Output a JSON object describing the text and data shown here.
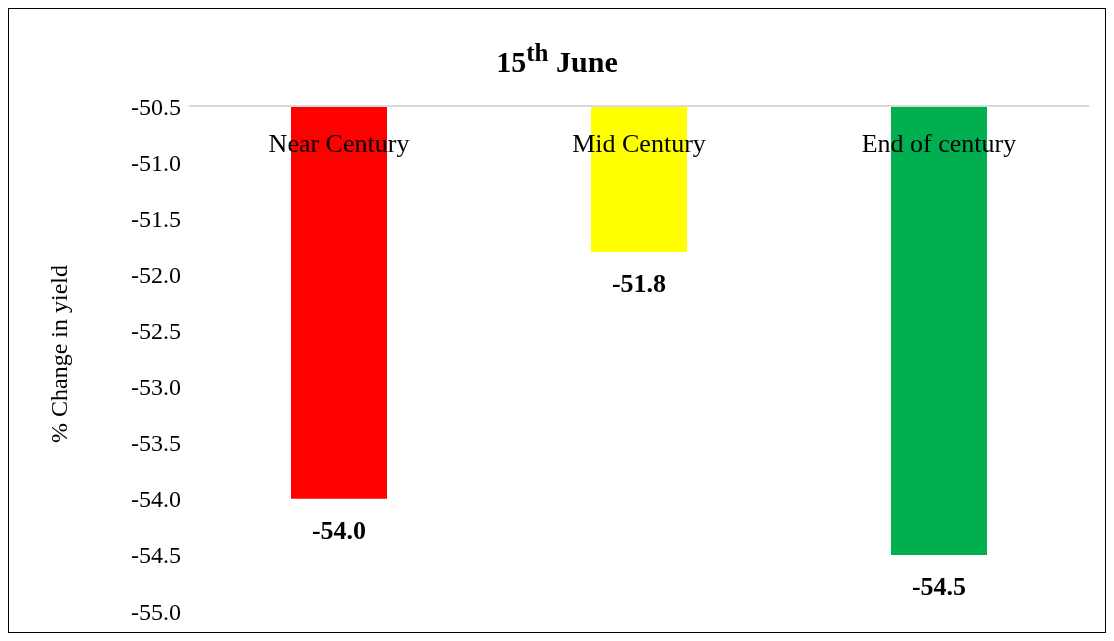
{
  "chart_data": {
    "type": "bar",
    "title": "15$^{th}$ June",
    "ylabel": "% Change in yield",
    "categories": [
      "Near Century",
      "Mid Century",
      "End of century"
    ],
    "values": [
      -54.0,
      -51.8,
      -54.5
    ],
    "colors": [
      "#ff0000",
      "#ffff00",
      "#00b050"
    ],
    "value_labels": [
      "-54.0",
      "-51.8",
      "-54.5"
    ],
    "ylim": [
      -55.0,
      -50.5
    ],
    "yticks": [
      {
        "value": -55,
        "label": "-55.0"
      },
      {
        "value": -54.5,
        "label": "-54.5"
      },
      {
        "value": -54,
        "label": "-54.0"
      },
      {
        "value": -53.5,
        "label": "-53.5"
      },
      {
        "value": -53,
        "label": "-53.0"
      },
      {
        "value": -52.5,
        "label": "-52.5"
      },
      {
        "value": -52,
        "label": "-52.0"
      },
      {
        "value": -51.5,
        "label": "-51.5"
      },
      {
        "value": -51,
        "label": "-51.0"
      },
      {
        "value": -50.5,
        "label": "-50.5"
      }
    ],
    "grid": false,
    "legend": false
  }
}
